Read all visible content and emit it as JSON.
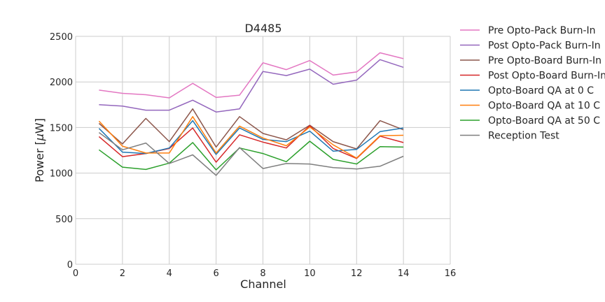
{
  "chart_data": {
    "type": "line",
    "title": "D4485",
    "xlabel": "Channel",
    "ylabel_prefix": "Power [",
    "ylabel_unit_greek": "μ",
    "ylabel_suffix": "W]",
    "xlim": [
      0,
      16
    ],
    "ylim": [
      0,
      2500
    ],
    "xticks": [
      0,
      2,
      4,
      6,
      8,
      10,
      12,
      14,
      16
    ],
    "yticks": [
      0,
      500,
      1000,
      1500,
      2000,
      2500
    ],
    "grid": true,
    "legend_placement": "outside-top-right",
    "x": [
      1,
      2,
      3,
      4,
      5,
      6,
      7,
      8,
      9,
      10,
      11,
      12,
      13,
      14
    ],
    "series": [
      {
        "name": "Pre Opto-Pack Burn-In",
        "color": "#e377c2",
        "values": [
          1910,
          1875,
          1860,
          1825,
          1985,
          1830,
          1855,
          2210,
          2135,
          2235,
          2075,
          2110,
          2320,
          2255
        ]
      },
      {
        "name": "Post Opto-Pack Burn-In",
        "color": "#9467bd",
        "values": [
          1750,
          1735,
          1690,
          1690,
          1800,
          1670,
          1705,
          2115,
          2070,
          2140,
          1975,
          2020,
          2245,
          2160
        ]
      },
      {
        "name": "Pre Opto-Board Burn-In",
        "color": "#8c564b",
        "values": [
          1545,
          1320,
          1600,
          1345,
          1705,
          1285,
          1620,
          1435,
          1365,
          1525,
          1345,
          1265,
          1575,
          1475
        ]
      },
      {
        "name": "Post Opto-Board Burn-In",
        "color": "#d62728",
        "values": [
          1400,
          1180,
          1215,
          1270,
          1495,
          1120,
          1420,
          1340,
          1275,
          1520,
          1270,
          1160,
          1405,
          1335
        ]
      },
      {
        "name": "Opto-Board QA at 0 C",
        "color": "#1f77b4",
        "values": [
          1490,
          1230,
          1215,
          1275,
          1575,
          1205,
          1495,
          1370,
          1345,
          1460,
          1240,
          1260,
          1455,
          1495
        ]
      },
      {
        "name": "Opto-Board QA at 10 C",
        "color": "#ff7f0e",
        "values": [
          1570,
          1295,
          1220,
          1220,
          1620,
          1220,
          1515,
          1385,
          1300,
          1505,
          1310,
          1165,
          1410,
          1415
        ]
      },
      {
        "name": "Opto-Board QA at 50 C",
        "color": "#2ca02c",
        "values": [
          1255,
          1065,
          1040,
          1110,
          1335,
          1035,
          1275,
          1215,
          1125,
          1350,
          1150,
          1100,
          1290,
          1285
        ]
      },
      {
        "name": "Reception Test",
        "color": "#7f7f7f",
        "values": [
          1445,
          1255,
          1330,
          1105,
          1200,
          975,
          1280,
          1050,
          1105,
          1100,
          1060,
          1045,
          1075,
          1185
        ]
      }
    ]
  }
}
